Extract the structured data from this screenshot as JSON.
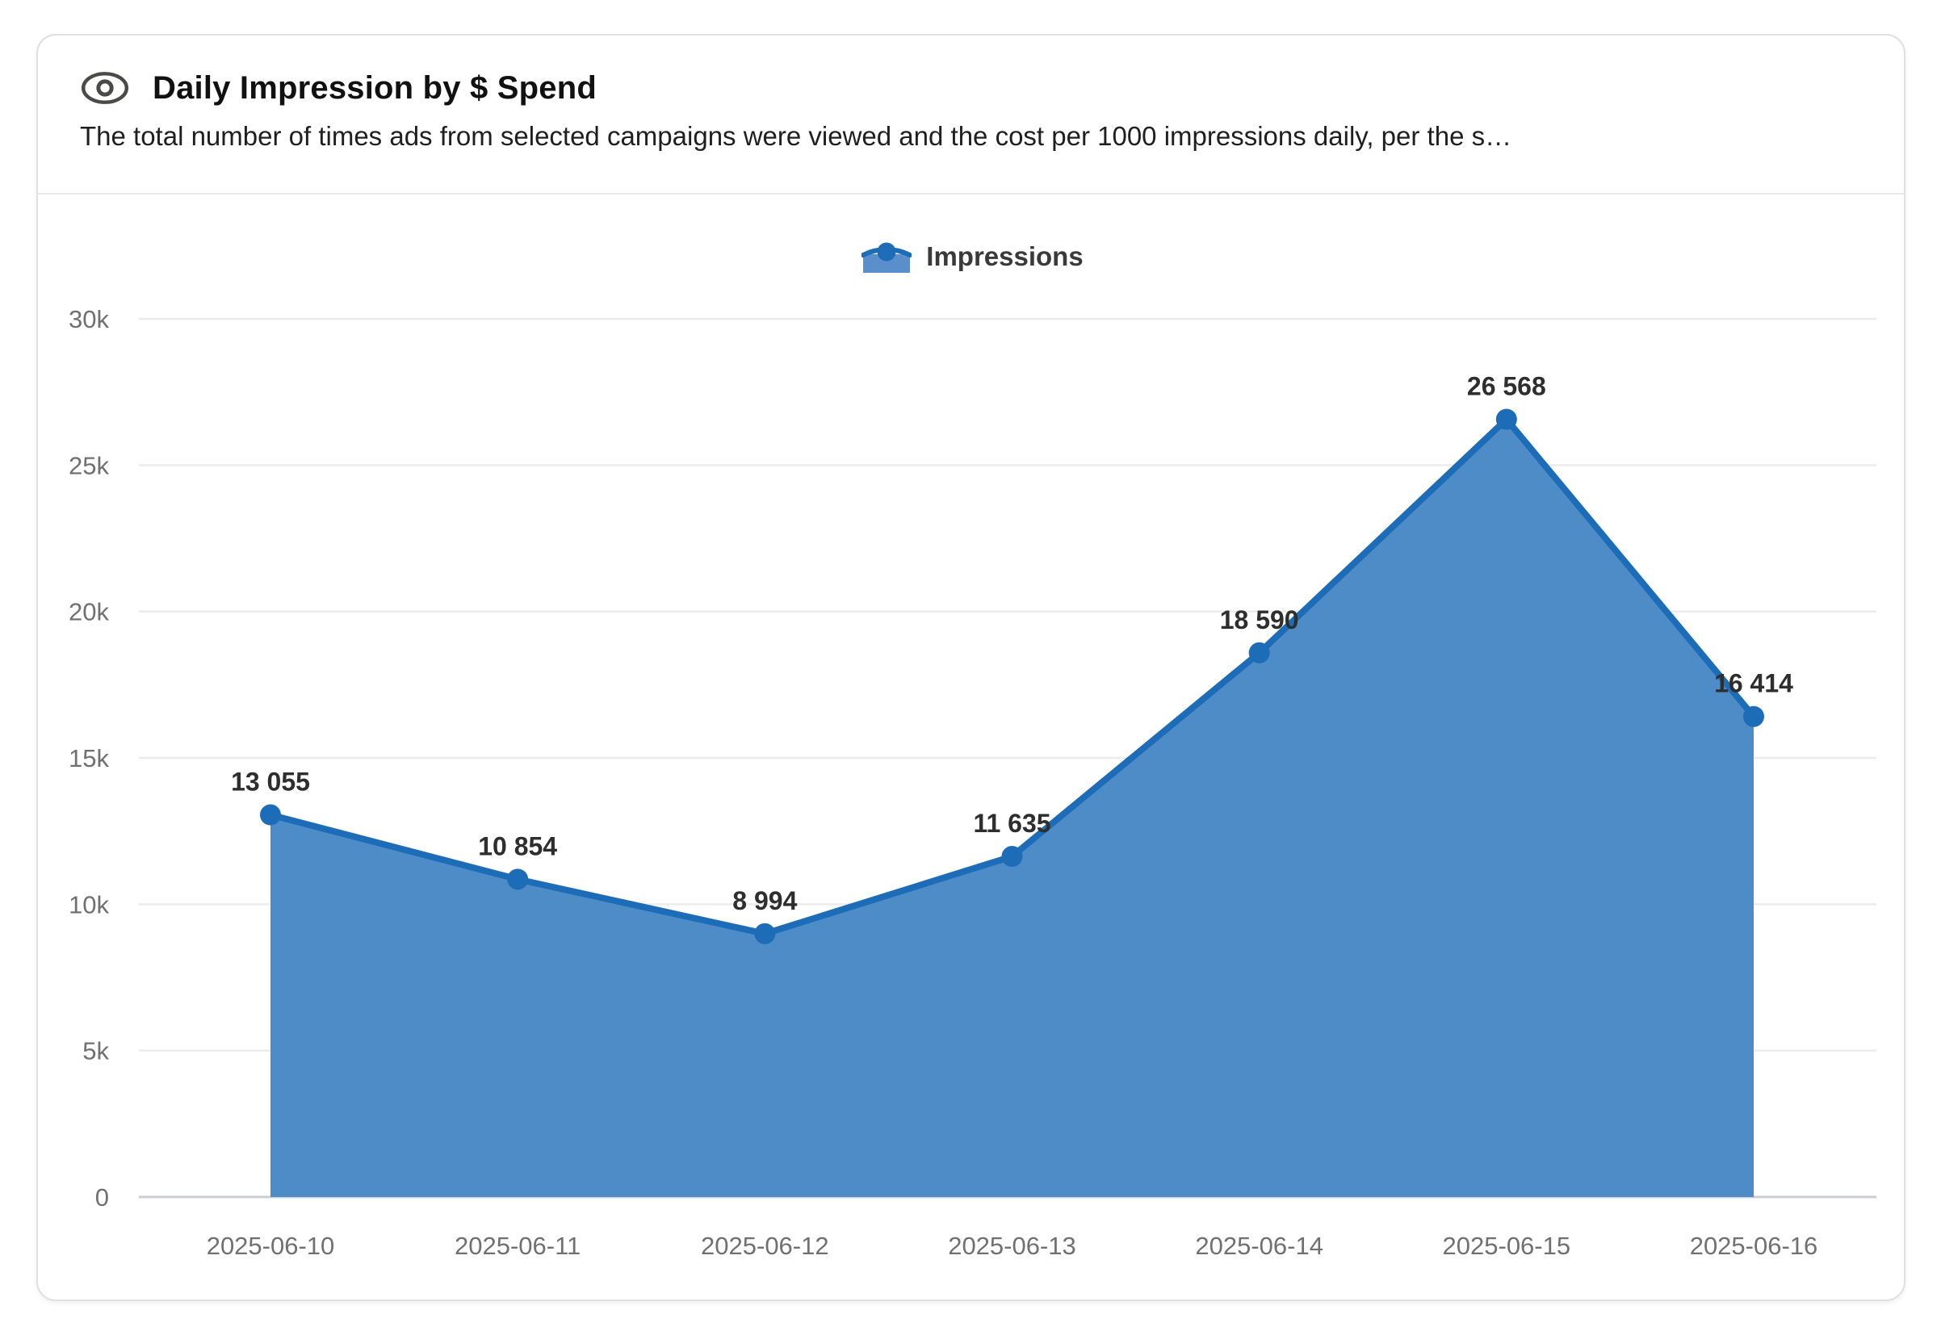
{
  "card": {
    "title": "Daily Impression by $ Spend",
    "subtitle": "The total number of times ads from selected campaigns were viewed and the cost per 1000 impressions daily, per the s…"
  },
  "legend": {
    "label": "Impressions"
  },
  "colors": {
    "line": "#1c6cb8",
    "fill": "#4e8cc8",
    "dot": "#1c6cb8",
    "grid": "#ececec",
    "baseline": "#c9cdd6",
    "axis_text": "#707070",
    "data_label_text": "#2e2e2e",
    "legend_marker_fill": "#5b8fcb"
  },
  "chart_data": {
    "type": "area",
    "title": "Daily Impression by $ Spend",
    "categories": [
      "2025-06-10",
      "2025-06-11",
      "2025-06-12",
      "2025-06-13",
      "2025-06-14",
      "2025-06-15",
      "2025-06-16"
    ],
    "series": [
      {
        "name": "Impressions",
        "values": [
          13055,
          10854,
          8994,
          11635,
          18590,
          26568,
          16414
        ],
        "labels": [
          "13 055",
          "10 854",
          "8 994",
          "11 635",
          "18 590",
          "26 568",
          "16 414"
        ]
      }
    ],
    "xlabel": "",
    "ylabel": "",
    "ylim": [
      0,
      30000
    ],
    "yticks": [
      {
        "value": 0,
        "label": "0"
      },
      {
        "value": 5000,
        "label": "5k"
      },
      {
        "value": 10000,
        "label": "10k"
      },
      {
        "value": 15000,
        "label": "15k"
      },
      {
        "value": 20000,
        "label": "20k"
      },
      {
        "value": 25000,
        "label": "25k"
      },
      {
        "value": 30000,
        "label": "30k"
      }
    ],
    "grid": true,
    "legend_position": "top-center"
  }
}
